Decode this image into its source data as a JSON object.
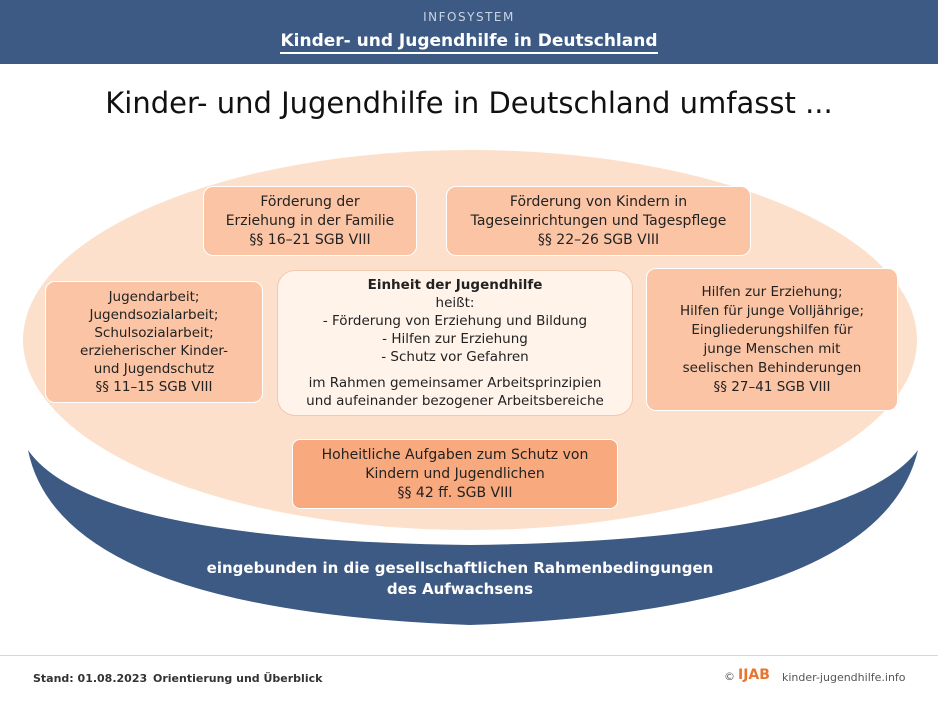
{
  "header": {
    "kicker": "INFOSYSTEM",
    "title": "Kinder- und Jugendhilfe in Deutschland"
  },
  "main_title": "Kinder- und Jugendhilfe in Deutschland umfasst ...",
  "boxes": {
    "familie": {
      "lines": [
        "Förderung der",
        "Erziehung in der Familie",
        "§§ 16–21 SGB VIII"
      ]
    },
    "tageseinrichtungen": {
      "lines": [
        "Förderung von Kindern in",
        "Tageseinrichtungen und Tagespflege",
        "§§ 22–26 SGB VIII"
      ]
    },
    "jugendarbeit": {
      "lines": [
        "Jugendarbeit;",
        "Jugendsozialarbeit;",
        "Schulsozialarbeit;",
        "erzieherischer Kinder-",
        "und Jugendschutz",
        "§§ 11–15 SGB VIII"
      ]
    },
    "einheit": {
      "title": "Einheit der Jugendhilfe",
      "subtitle": "heißt:",
      "items": [
        "- Förderung von Erziehung und Bildung",
        "- Hilfen zur Erziehung",
        "- Schutz vor Gefahren"
      ],
      "footer_lines": [
        "im Rahmen gemeinsamer Arbeitsprinzipien",
        "und aufeinander bezogener Arbeitsbereiche"
      ]
    },
    "hilfen": {
      "lines": [
        "Hilfen zur Erziehung;",
        "Hilfen für junge Volljährige;",
        "Eingliederungshilfen für",
        "junge Menschen mit",
        "seelischen Behinderungen",
        "§§ 27–41 SGB VIII"
      ]
    },
    "hoheitlich": {
      "lines": [
        "Hoheitliche Aufgaben zum Schutz von",
        "Kindern und Jugendlichen",
        "§§ 42 ff. SGB VIII"
      ]
    }
  },
  "band_text": [
    "eingebunden in die gesellschaftlichen Rahmenbedingungen",
    "des Aufwachsens"
  ],
  "footer": {
    "stand": "Stand: 01.08.2023",
    "section": "Orientierung und Überblick",
    "copyright": "©",
    "logo": "IJAB",
    "url": "kinder-jugendhilfe.info"
  },
  "colors": {
    "header_bg": "#3d5a84",
    "band": "#3d5a84",
    "ellipse": "#fde0cc",
    "box": "#fbc4a4",
    "box_strong": "#f8a97d",
    "logo": "#e8742e"
  }
}
